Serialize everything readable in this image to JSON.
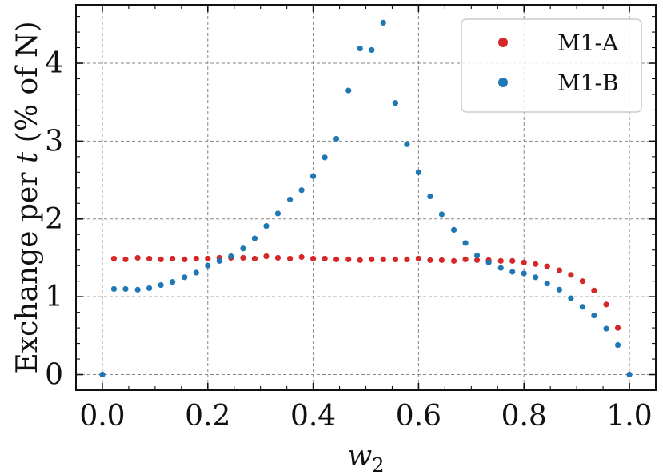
{
  "chart_data": {
    "type": "scatter",
    "title": "",
    "xlabel_var": "w",
    "xlabel_sub": "2",
    "ylabel_prefix": "Exchange per ",
    "ylabel_var": "t",
    "ylabel_suffix": " (% of N)",
    "xlim": [
      -0.05,
      1.05
    ],
    "ylim": [
      -0.2,
      4.75
    ],
    "xticks": [
      0.0,
      0.2,
      0.4,
      0.6,
      0.8,
      1.0
    ],
    "xtick_labels": [
      "0.0",
      "0.2",
      "0.4",
      "0.6",
      "0.8",
      "1.0"
    ],
    "yticks": [
      0,
      1,
      2,
      3,
      4
    ],
    "ytick_labels": [
      "0",
      "1",
      "2",
      "3",
      "4"
    ],
    "grid": true,
    "legend_position": "top-right",
    "colors": {
      "M1-A": "#d62728",
      "M1-B": "#1f77b4"
    },
    "series": [
      {
        "name": "M1-A",
        "color": "#d62728",
        "x": [
          0.022,
          0.044,
          0.067,
          0.089,
          0.111,
          0.133,
          0.156,
          0.178,
          0.2,
          0.222,
          0.244,
          0.267,
          0.289,
          0.311,
          0.333,
          0.356,
          0.378,
          0.4,
          0.422,
          0.444,
          0.467,
          0.489,
          0.511,
          0.533,
          0.556,
          0.578,
          0.6,
          0.622,
          0.644,
          0.667,
          0.689,
          0.711,
          0.733,
          0.756,
          0.778,
          0.8,
          0.822,
          0.844,
          0.867,
          0.889,
          0.911,
          0.933,
          0.956,
          0.978
        ],
        "y": [
          1.49,
          1.48,
          1.5,
          1.49,
          1.48,
          1.49,
          1.48,
          1.49,
          1.49,
          1.5,
          1.5,
          1.5,
          1.49,
          1.52,
          1.5,
          1.49,
          1.51,
          1.49,
          1.49,
          1.48,
          1.48,
          1.47,
          1.48,
          1.48,
          1.48,
          1.48,
          1.49,
          1.47,
          1.47,
          1.46,
          1.48,
          1.47,
          1.47,
          1.46,
          1.46,
          1.44,
          1.42,
          1.39,
          1.34,
          1.28,
          1.2,
          1.08,
          0.9,
          0.6
        ]
      },
      {
        "name": "M1-B",
        "color": "#1f77b4",
        "x": [
          0.0,
          0.022,
          0.044,
          0.067,
          0.089,
          0.111,
          0.133,
          0.156,
          0.178,
          0.2,
          0.222,
          0.244,
          0.267,
          0.289,
          0.311,
          0.333,
          0.356,
          0.378,
          0.4,
          0.422,
          0.444,
          0.467,
          0.489,
          0.511,
          0.533,
          0.556,
          0.578,
          0.6,
          0.622,
          0.644,
          0.667,
          0.689,
          0.711,
          0.733,
          0.756,
          0.778,
          0.8,
          0.822,
          0.844,
          0.867,
          0.889,
          0.911,
          0.933,
          0.956,
          0.978,
          1.0
        ],
        "y": [
          0.0,
          1.1,
          1.1,
          1.09,
          1.11,
          1.15,
          1.19,
          1.25,
          1.31,
          1.4,
          1.46,
          1.52,
          1.62,
          1.75,
          1.91,
          2.07,
          2.25,
          2.37,
          2.55,
          2.79,
          3.03,
          3.65,
          4.19,
          4.17,
          4.52,
          3.49,
          2.96,
          2.6,
          2.29,
          2.06,
          1.86,
          1.69,
          1.53,
          1.44,
          1.37,
          1.32,
          1.3,
          1.25,
          1.17,
          1.09,
          0.98,
          0.87,
          0.76,
          0.59,
          0.38,
          0.0
        ]
      }
    ]
  }
}
